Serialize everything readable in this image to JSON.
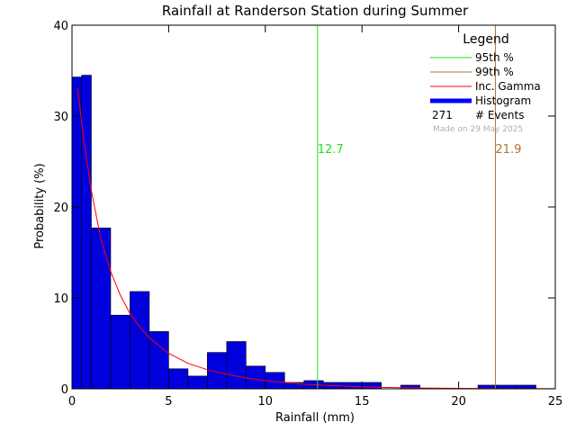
{
  "chart_data": {
    "type": "bar",
    "title": "Rainfall at Randerson Station during Summer",
    "xlabel": "Rainfall (mm)",
    "ylabel": "Probability (%)",
    "xlim": [
      0,
      25
    ],
    "ylim": [
      0,
      40
    ],
    "x_ticks": [
      0,
      5,
      10,
      15,
      20,
      25
    ],
    "y_ticks": [
      0,
      10,
      20,
      30,
      40
    ],
    "grid": false,
    "legend_placement": "top-right",
    "histogram": {
      "bin_width": 1,
      "bins": [
        {
          "start": 0,
          "value": 34.3
        },
        {
          "start": 0.5,
          "value": 34.5
        },
        {
          "start": 1,
          "value": 17.7
        },
        {
          "start": 2,
          "value": 8.1
        },
        {
          "start": 3,
          "value": 10.7
        },
        {
          "start": 4,
          "value": 6.3
        },
        {
          "start": 5,
          "value": 2.2
        },
        {
          "start": 6,
          "value": 1.4
        },
        {
          "start": 7,
          "value": 4.0
        },
        {
          "start": 8,
          "value": 5.2
        },
        {
          "start": 9,
          "value": 2.5
        },
        {
          "start": 10,
          "value": 1.8
        },
        {
          "start": 11,
          "value": 0.7
        },
        {
          "start": 12,
          "value": 0.9
        },
        {
          "start": 13,
          "value": 0.7
        },
        {
          "start": 14,
          "value": 0.7
        },
        {
          "start": 15,
          "value": 0.7
        },
        {
          "start": 16,
          "value": 0.0
        },
        {
          "start": 17,
          "value": 0.4
        },
        {
          "start": 18,
          "value": 0.0
        },
        {
          "start": 19,
          "value": 0.0
        },
        {
          "start": 20,
          "value": 0.0
        },
        {
          "start": 21,
          "value": 0.4
        },
        {
          "start": 22,
          "value": 0.4
        },
        {
          "start": 23,
          "value": 0.4
        }
      ]
    },
    "gamma_curve": {
      "x": [
        0.3,
        0.6,
        1,
        1.5,
        2,
        2.5,
        3,
        3.5,
        4,
        5,
        6,
        7,
        8,
        9,
        10,
        11,
        12,
        13,
        14,
        15,
        16,
        18,
        20,
        22,
        25
      ],
      "y": [
        33.0,
        27.5,
        21.8,
        16.4,
        12.9,
        10.3,
        8.3,
        6.8,
        5.6,
        3.9,
        2.8,
        2.1,
        1.6,
        1.2,
        0.9,
        0.7,
        0.5,
        0.4,
        0.3,
        0.22,
        0.16,
        0.09,
        0.05,
        0.03,
        0.01
      ]
    },
    "percentile_95": {
      "value": 12.7,
      "label": "12.7",
      "color": "#22dd22"
    },
    "percentile_99": {
      "value": 21.9,
      "label": "21.9",
      "color": "#b07030"
    },
    "colors": {
      "histogram_fill": "#0000dd",
      "histogram_edge": "#000000",
      "gamma": "#ff0000",
      "legend_histogram": "#0000ff"
    },
    "legend": {
      "title": "Legend",
      "items": [
        {
          "key": "p95",
          "label": "95th %"
        },
        {
          "key": "p99",
          "label": "99th %"
        },
        {
          "key": "gamma",
          "label": "Inc. Gamma"
        },
        {
          "key": "hist",
          "label": "Histogram"
        }
      ],
      "events_count": "271",
      "events_label": "# Events",
      "credit": "Made on 29 May 2025"
    }
  }
}
